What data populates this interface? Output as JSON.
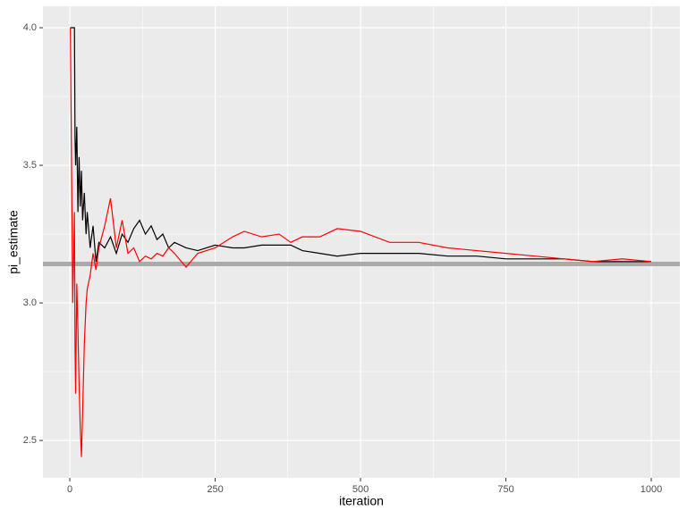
{
  "chart_data": {
    "type": "line",
    "x_label": "iteration",
    "y_label": "pi_estimate",
    "x": [
      1,
      5,
      8,
      9,
      10,
      12,
      14,
      16,
      18,
      20,
      22,
      25,
      28,
      30,
      35,
      40,
      45,
      50,
      60,
      70,
      80,
      90,
      100,
      110,
      120,
      130,
      140,
      150,
      160,
      170,
      180,
      200,
      220,
      250,
      280,
      300,
      330,
      360,
      380,
      400,
      430,
      460,
      500,
      550,
      600,
      650,
      700,
      750,
      800,
      850,
      900,
      950,
      1000
    ],
    "series": [
      {
        "color": "#000000",
        "values": [
          4,
          4,
          4,
          3.6,
          3.5,
          3.64,
          3.33,
          3.53,
          3.35,
          3.48,
          3.3,
          3.4,
          3.25,
          3.33,
          3.2,
          3.28,
          3.15,
          3.22,
          3.2,
          3.24,
          3.18,
          3.25,
          3.22,
          3.27,
          3.3,
          3.25,
          3.28,
          3.23,
          3.25,
          3.2,
          3.22,
          3.2,
          3.19,
          3.21,
          3.2,
          3.2,
          3.21,
          3.21,
          3.21,
          3.19,
          3.18,
          3.17,
          3.18,
          3.18,
          3.18,
          3.17,
          3.17,
          3.16,
          3.16,
          3.16,
          3.15,
          3.15,
          3.15
        ]
      },
      {
        "color": "#ff0000",
        "values": [
          4,
          3.0,
          3.33,
          2.85,
          2.67,
          3.07,
          2.9,
          2.7,
          2.55,
          2.44,
          2.6,
          2.85,
          3.0,
          3.05,
          3.1,
          3.18,
          3.12,
          3.2,
          3.28,
          3.38,
          3.2,
          3.3,
          3.18,
          3.2,
          3.15,
          3.17,
          3.16,
          3.18,
          3.17,
          3.2,
          3.18,
          3.13,
          3.18,
          3.2,
          3.24,
          3.26,
          3.24,
          3.25,
          3.22,
          3.24,
          3.24,
          3.27,
          3.26,
          3.22,
          3.22,
          3.2,
          3.19,
          3.18,
          3.17,
          3.16,
          3.15,
          3.16,
          3.15
        ]
      }
    ],
    "reference_line": {
      "value": 3.14159,
      "color": "#aaaaaa"
    },
    "xlim": [
      -46.2,
      1049.2
    ],
    "ylim": [
      2.364,
      4.078
    ],
    "xticks": [
      0,
      250,
      500,
      750,
      1000
    ],
    "yticks": [
      2.5,
      {
        "value": 3,
        "label": "3.0"
      },
      3.5,
      {
        "value": 4,
        "label": "4.0"
      }
    ],
    "x_minor_ticks": [
      125,
      375,
      625,
      875
    ],
    "y_minor_ticks": [
      2.75,
      3.25,
      3.75
    ],
    "grid": true
  }
}
